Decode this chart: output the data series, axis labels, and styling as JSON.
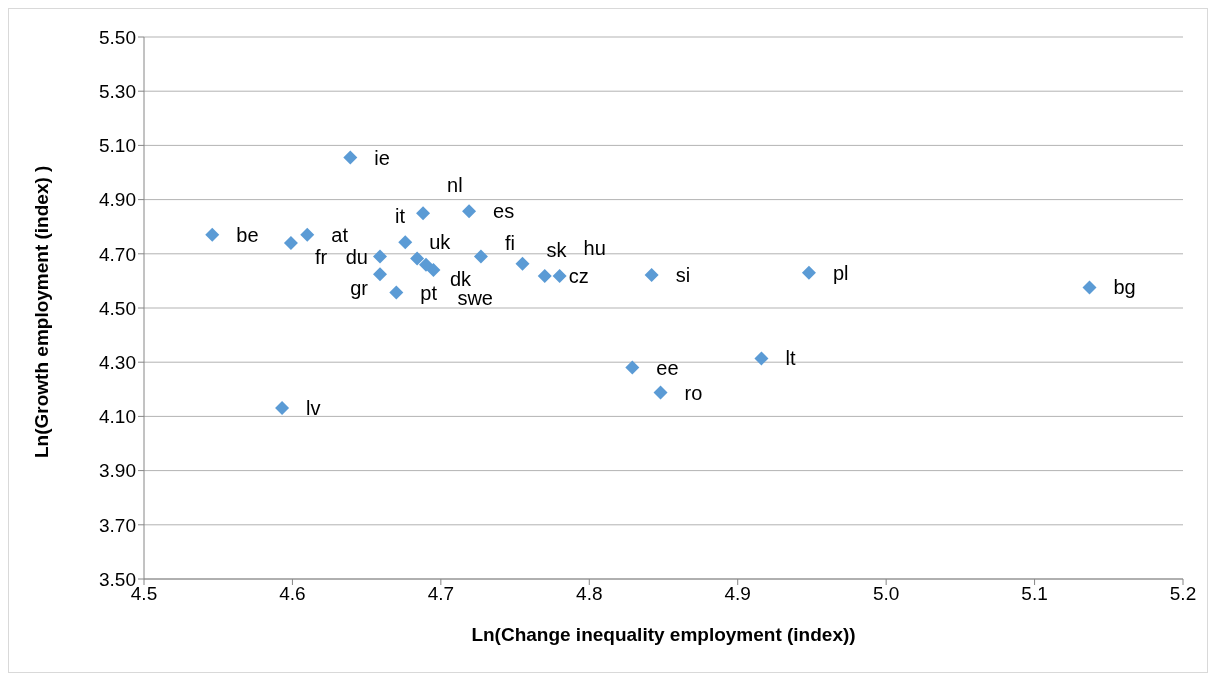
{
  "chart_data": {
    "type": "scatter",
    "xlabel": "Ln(Change inequality employment (index))",
    "ylabel": "Ln(Growth employment (index) )",
    "x": [
      4.546,
      4.599,
      4.61,
      4.639,
      4.688,
      4.719,
      4.676,
      4.659,
      4.659,
      4.67,
      4.684,
      4.69,
      4.695,
      4.727,
      4.755,
      4.77,
      4.78,
      4.842,
      4.948,
      5.137,
      4.916,
      4.829,
      4.848,
      4.593
    ],
    "series": [
      {
        "color": "#5b9bd5",
        "values": [
          4.77,
          4.74,
          4.77,
          5.055,
          4.85,
          4.857,
          4.743,
          4.69,
          4.625,
          4.557,
          4.683,
          4.66,
          4.64,
          4.69,
          4.663,
          4.618,
          4.618,
          4.622,
          4.63,
          4.576,
          4.314,
          4.28,
          4.188,
          4.131
        ]
      }
    ],
    "annotations": [
      {
        "text": "be",
        "x": 4.546,
        "y": 4.77
      },
      {
        "text": "fr",
        "x": 4.599,
        "y": 4.74
      },
      {
        "text": "at",
        "x": 4.61,
        "y": 4.77
      },
      {
        "text": "ie",
        "x": 4.639,
        "y": 5.055
      },
      {
        "text": "nl",
        "x": 4.688,
        "y": 4.85
      },
      {
        "text": "es",
        "x": 4.719,
        "y": 4.857
      },
      {
        "text": "uk",
        "x": 4.676,
        "y": 4.743
      },
      {
        "text": "du",
        "x": 4.659,
        "y": 4.69
      },
      {
        "text": "gr",
        "x": 4.659,
        "y": 4.625
      },
      {
        "text": "pt",
        "x": 4.67,
        "y": 4.557
      },
      {
        "text": "it",
        "x": 4.684,
        "y": 4.683
      },
      {
        "text": "dk",
        "x": 4.69,
        "y": 4.66
      },
      {
        "text": "swe",
        "x": 4.695,
        "y": 4.64
      },
      {
        "text": "fi",
        "x": 4.727,
        "y": 4.69
      },
      {
        "text": "sk",
        "x": 4.755,
        "y": 4.663
      },
      {
        "text": "cz",
        "x": 4.77,
        "y": 4.618
      },
      {
        "text": "hu",
        "x": 4.78,
        "y": 4.618
      },
      {
        "text": "si",
        "x": 4.842,
        "y": 4.622
      },
      {
        "text": "pl",
        "x": 4.948,
        "y": 4.63
      },
      {
        "text": "bg",
        "x": 5.137,
        "y": 4.576
      },
      {
        "text": "lt",
        "x": 4.916,
        "y": 4.314
      },
      {
        "text": "ee",
        "x": 4.829,
        "y": 4.28
      },
      {
        "text": "ro",
        "x": 4.848,
        "y": 4.188
      },
      {
        "text": "lv",
        "x": 4.593,
        "y": 4.131
      }
    ],
    "xlim": [
      4.5,
      5.2
    ],
    "xticks": [
      {
        "value": 4.5,
        "label": "4.5"
      },
      {
        "value": 4.6,
        "label": "4.6"
      },
      {
        "value": 4.7,
        "label": "4.7"
      },
      {
        "value": 4.8,
        "label": "4.8"
      },
      {
        "value": 4.9,
        "label": "4.9"
      },
      {
        "value": 5.0,
        "label": "5.0"
      },
      {
        "value": 5.1,
        "label": "5.1"
      },
      {
        "value": 5.2,
        "label": "5.2"
      }
    ],
    "ylim": [
      3.5,
      5.5
    ],
    "yticks": [
      {
        "value": 3.5,
        "label": "3.50"
      },
      {
        "value": 3.7,
        "label": "3.70"
      },
      {
        "value": 3.9,
        "label": "3.90"
      },
      {
        "value": 4.1,
        "label": "4.10"
      },
      {
        "value": 4.3,
        "label": "4.30"
      },
      {
        "value": 4.5,
        "label": "4.50"
      },
      {
        "value": 4.7,
        "label": "4.70"
      },
      {
        "value": 4.9,
        "label": "4.90"
      },
      {
        "value": 5.1,
        "label": "5.10"
      },
      {
        "value": 5.3,
        "label": "5.30"
      },
      {
        "value": 5.5,
        "label": "5.50"
      }
    ],
    "grid": "y",
    "marker": "diamond",
    "legend": false
  }
}
